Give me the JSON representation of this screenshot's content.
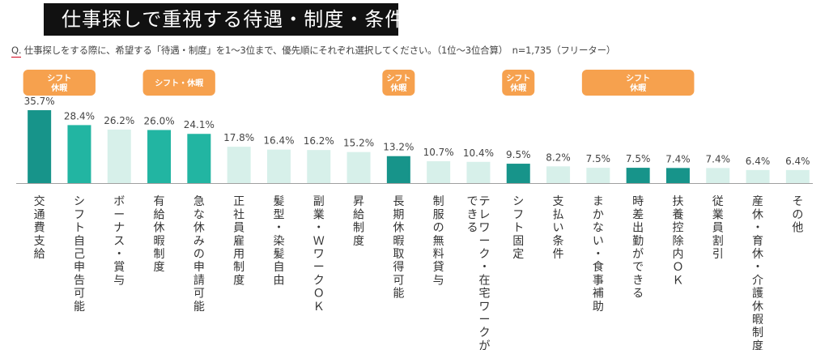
{
  "header": {
    "title": "仕事探しで重視する待遇・制度・条件",
    "question_prefix": "Q.",
    "question": "仕事探しをする際に、希望する「待遇・制度」を1～3位まで、優先順にそれぞれ選択してください。（1位～3位合算）　n=1,735（フリーター）"
  },
  "colors": {
    "dark_teal": "#17948a",
    "medium_teal": "#22b5a2",
    "light_teal": "#d7f0ea",
    "badge_orange": "#f6a14e",
    "axis": "#a0a0a0"
  },
  "chart_data": {
    "type": "bar",
    "categories": [
      "交通費支給",
      "シフト自己申告可能",
      "ボーナス・賞与",
      "有給休暇制度",
      "急な休みの申請可能",
      "正社員雇用制度",
      "髪型・染髪自由",
      "副業・ＷワークＯＫ",
      "昇給制度",
      "長期休暇取得可能",
      "制服の無料貸与",
      "テレワーク・在宅ワークができる",
      "シフト固定",
      "支払い条件",
      "まかない・食事補助",
      "時差出勤ができる",
      "扶養控除内ＯＫ",
      "従業員割引",
      "産休・育休・介護休暇制度",
      "その他"
    ],
    "category_display": [
      [
        "交通費支給"
      ],
      [
        "シフト自己申告可能"
      ],
      [
        "ボーナス・賞与"
      ],
      [
        "有給休暇制度"
      ],
      [
        "急な休みの申請可能"
      ],
      [
        "正社員雇用制度"
      ],
      [
        "髪型・染髪自由"
      ],
      [
        "副業・ＷワークＯＫ"
      ],
      [
        "昇給制度"
      ],
      [
        "長期休暇取得可能"
      ],
      [
        "制服の無料貸与"
      ],
      [
        "テレワーク・在宅ワークが",
        "できる"
      ],
      [
        "シフト固定"
      ],
      [
        "支払い条件"
      ],
      [
        "まかない・食事補助"
      ],
      [
        "時差出勤ができる"
      ],
      [
        "扶養控除内ＯＫ"
      ],
      [
        "従業員割引"
      ],
      [
        "産休・育休・介護休暇制度"
      ],
      [
        "その他"
      ]
    ],
    "values": [
      35.7,
      28.4,
      26.2,
      26.0,
      24.1,
      17.8,
      16.4,
      16.2,
      15.2,
      13.2,
      10.7,
      10.4,
      9.5,
      8.2,
      7.5,
      7.5,
      7.4,
      7.4,
      6.4,
      6.4
    ],
    "data_labels": [
      "35.7%",
      "28.4%",
      "26.2%",
      "26.0%",
      "24.1%",
      "17.8%",
      "16.4%",
      "16.2%",
      "15.2%",
      "13.2%",
      "10.7%",
      "10.4%",
      "9.5%",
      "8.2%",
      "7.5%",
      "7.5%",
      "7.4%",
      "7.4%",
      "6.4%",
      "6.4%"
    ],
    "bar_colors": [
      "#17948a",
      "#22b5a2",
      "#d7f0ea",
      "#22b5a2",
      "#22b5a2",
      "#d7f0ea",
      "#d7f0ea",
      "#d7f0ea",
      "#d7f0ea",
      "#17948a",
      "#d7f0ea",
      "#d7f0ea",
      "#17948a",
      "#d7f0ea",
      "#d7f0ea",
      "#17948a",
      "#17948a",
      "#d7f0ea",
      "#d7f0ea",
      "#d7f0ea"
    ],
    "ylim": [
      0,
      40
    ],
    "grid": false,
    "badges": [
      {
        "text": "シフト休暇",
        "lines": [
          "シフト",
          "休暇"
        ],
        "from": 0,
        "to": 1
      },
      {
        "text": "シフト・休暇",
        "lines": [
          "シフト・休暇"
        ],
        "from": 3,
        "to": 4
      },
      {
        "text": "シフト休暇",
        "lines": [
          "シフト",
          "休暇"
        ],
        "from": 9,
        "to": 9
      },
      {
        "text": "シフト休暇",
        "lines": [
          "シフト",
          "休暇"
        ],
        "from": 12,
        "to": 12
      },
      {
        "text": "シフト休暇",
        "lines": [
          "シフト",
          "休暇"
        ],
        "from": 14,
        "to": 16
      }
    ]
  }
}
